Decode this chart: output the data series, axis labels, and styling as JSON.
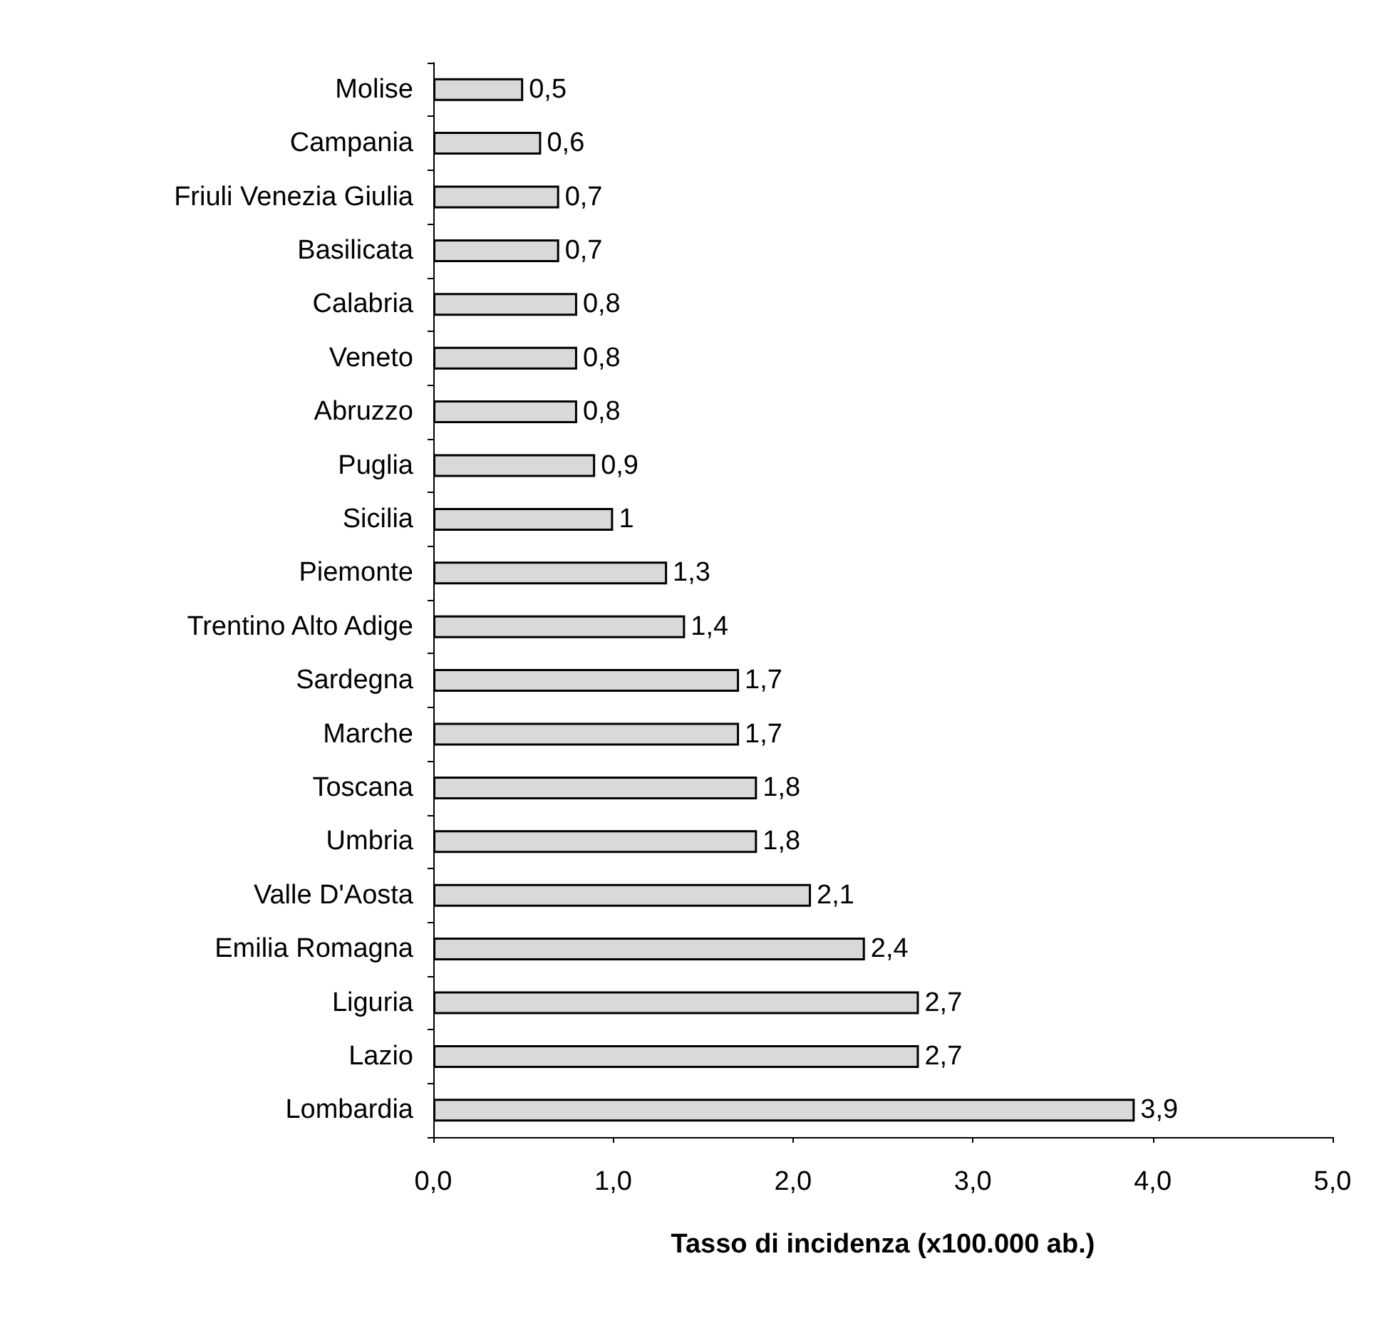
{
  "chart_data": {
    "type": "bar",
    "orientation": "horizontal",
    "xlabel": "Tasso di incidenza (x100.000 ab.)",
    "categories": [
      "Molise",
      "Campania",
      "Friuli Venezia Giulia",
      "Basilicata",
      "Calabria",
      "Veneto",
      "Abruzzo",
      "Puglia",
      "Sicilia",
      "Piemonte",
      "Trentino Alto Adige",
      "Sardegna",
      "Marche",
      "Toscana",
      "Umbria",
      "Valle D'Aosta",
      "Emilia Romagna",
      "Liguria",
      "Lazio",
      "Lombardia"
    ],
    "values": [
      0.5,
      0.6,
      0.7,
      0.7,
      0.8,
      0.8,
      0.8,
      0.9,
      1,
      1.3,
      1.4,
      1.7,
      1.7,
      1.8,
      1.8,
      2.1,
      2.4,
      2.7,
      2.7,
      3.9
    ],
    "value_labels": [
      "0,5",
      "0,6",
      "0,7",
      "0,7",
      "0,8",
      "0,8",
      "0,8",
      "0,9",
      "1",
      "1,3",
      "1,4",
      "1,7",
      "1,7",
      "1,8",
      "1,8",
      "2,1",
      "2,4",
      "2,7",
      "2,7",
      "3,9"
    ],
    "color": "#d9d9d9",
    "xlim": [
      0,
      5
    ],
    "xticks": [
      {
        "value": 0,
        "label": "0,0"
      },
      {
        "value": 1,
        "label": "1,0"
      },
      {
        "value": 2,
        "label": "2,0"
      },
      {
        "value": 3,
        "label": "3,0"
      },
      {
        "value": 4,
        "label": "4,0"
      },
      {
        "value": 5,
        "label": "5,0"
      }
    ],
    "grid": false
  }
}
